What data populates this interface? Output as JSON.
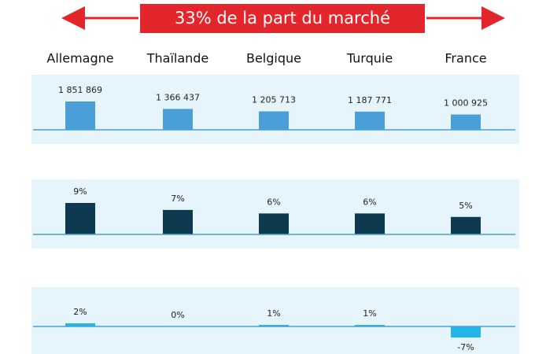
{
  "chart_data": [
    {
      "type": "bar",
      "title": "33% de la part du marché",
      "categories": [
        "Allemagne",
        "Thaïlande",
        "Belgique",
        "Turquie",
        "France"
      ],
      "values": [
        1851869,
        1366437,
        1205713,
        1187771,
        1000925
      ],
      "value_labels": [
        "1 851 869",
        "1 366 437",
        "1 205 713",
        "1 187 771",
        "1 000 925"
      ],
      "color": "#4a9fd8"
    },
    {
      "type": "bar",
      "values": [
        9,
        7,
        6,
        6,
        5
      ],
      "value_labels": [
        "9%",
        "7%",
        "6%",
        "6%",
        "5%"
      ],
      "color": "#0d3a4f"
    },
    {
      "type": "bar",
      "values": [
        2,
        0,
        1,
        1,
        -7
      ],
      "value_labels": [
        "2%",
        "0%",
        "1%",
        "1%",
        "-7%"
      ],
      "color": "#22b5e8"
    }
  ]
}
